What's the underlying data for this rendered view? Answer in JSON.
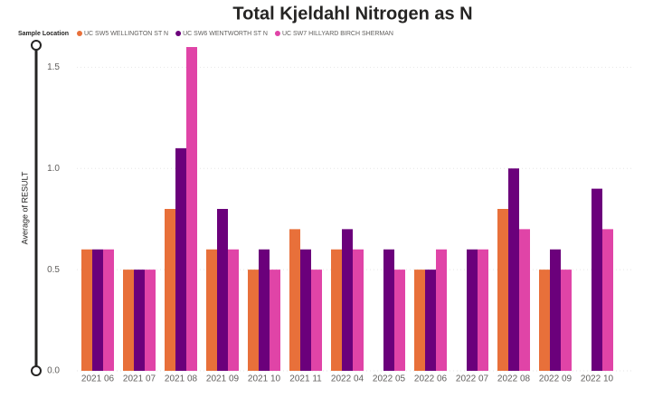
{
  "chart_data": {
    "type": "bar",
    "title": "Total Kjeldahl Nitrogen as N",
    "legend_title": "Sample Location",
    "y_label": "Average of RESULT",
    "categories": [
      "2021 06",
      "2021 07",
      "2021 08",
      "2021 09",
      "2021 10",
      "2021 11",
      "2022 04",
      "2022 05",
      "2022 06",
      "2022 07",
      "2022 08",
      "2022 09",
      "2022 10"
    ],
    "series": [
      {
        "name": "UC SW5 WELLINGTON ST N",
        "color": "#e8703a",
        "values": [
          0.6,
          0.5,
          0.8,
          0.6,
          0.5,
          0.7,
          0.6,
          null,
          0.5,
          null,
          0.8,
          0.5,
          null
        ]
      },
      {
        "name": "UC SW6 WENTWORTH ST N",
        "color": "#6b007b",
        "values": [
          0.6,
          0.5,
          1.1,
          0.8,
          0.6,
          0.6,
          0.7,
          0.6,
          0.5,
          0.6,
          1.0,
          0.6,
          0.9
        ]
      },
      {
        "name": "UC SW7 HILLYARD BIRCH SHERMAN",
        "color": "#e044a7",
        "values": [
          0.6,
          0.5,
          1.6,
          0.6,
          0.5,
          0.5,
          0.6,
          0.5,
          0.6,
          0.6,
          0.7,
          0.5,
          0.7
        ]
      }
    ],
    "ylim": [
      0,
      1.6
    ],
    "yticks": [
      {
        "value": 0,
        "label": "0.0"
      },
      0.5,
      {
        "value": 1,
        "label": "1.0"
      },
      1.5
    ],
    "grid": true
  }
}
